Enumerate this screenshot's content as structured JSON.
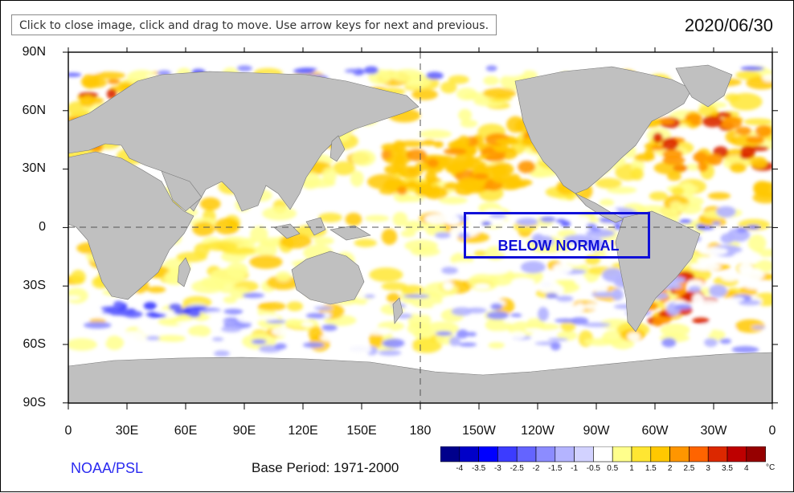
{
  "tooltip": "Click to close image, click and drag to move. Use arrow keys for next and previous.",
  "date": "2020/06/30",
  "lat_labels": [
    "90N",
    "60N",
    "30N",
    "0",
    "30S",
    "60S",
    "90S"
  ],
  "lon_labels": [
    "0",
    "30E",
    "60E",
    "90E",
    "120E",
    "150E",
    "180",
    "150W",
    "120W",
    "90W",
    "60W",
    "30W",
    "0"
  ],
  "annotation": "BELOW NORMAL",
  "organization": "NOAA/PSL",
  "base_period": "Base Period: 1971-2000",
  "colorbar": {
    "labels": [
      "-4",
      "-3.5",
      "-3",
      "-2.5",
      "-2",
      "-1.5",
      "-1",
      "-0.5",
      "0.5",
      "1",
      "1.5",
      "2",
      "2.5",
      "3",
      "3.5",
      "4"
    ],
    "unit": "°C",
    "colors": [
      "#00008c",
      "#0000c8",
      "#0000ff",
      "#3c3cff",
      "#6464ff",
      "#8c8cff",
      "#b4b4ff",
      "#d2d2ff",
      "#ffffff",
      "#ffff8c",
      "#ffe632",
      "#ffc800",
      "#ff9600",
      "#ff6400",
      "#dc2800",
      "#be0000",
      "#960000"
    ]
  },
  "colors": {
    "land": "#c0c0c0",
    "ocean_neutral": "#ffffff",
    "annotation": "#1010d8",
    "organization": "#2a2af0"
  }
}
